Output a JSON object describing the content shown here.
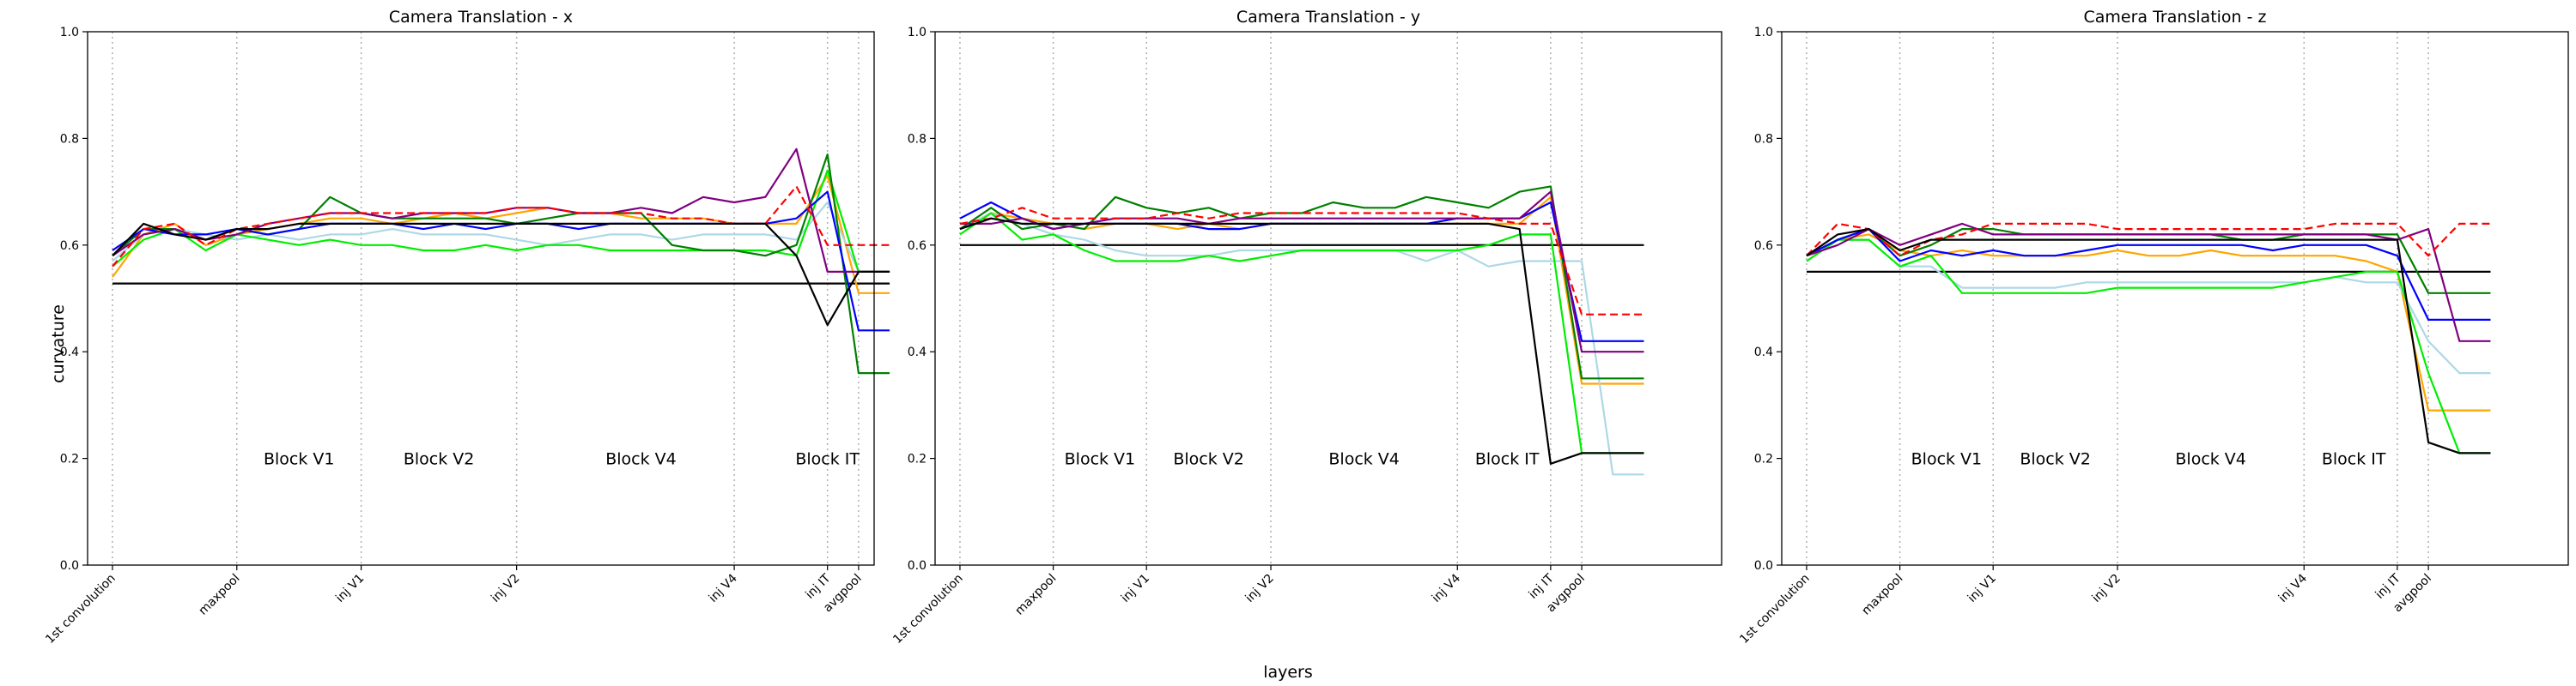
{
  "figure": {
    "xlabel": "layers",
    "ylabel": "curvature"
  },
  "chart_data": [
    {
      "type": "line",
      "title": "Camera Translation - x",
      "ylim": [
        0.0,
        1.0
      ],
      "yticks": [
        "0.0",
        "0.2",
        "0.4",
        "0.6",
        "0.8",
        "1.0"
      ],
      "xlim": [
        -0.8,
        24.5
      ],
      "vlines": [
        0,
        4,
        8,
        13,
        20,
        23,
        24
      ],
      "xticks": [
        "1st convolution",
        "maxpool",
        "inj V1",
        "inj V2",
        "inj V4",
        "inj IT",
        "avgpool"
      ],
      "blocks": [
        {
          "label": "Block V1",
          "x": 6
        },
        {
          "label": "Block V2",
          "x": 10.5
        },
        {
          "label": "Block V4",
          "x": 17
        },
        {
          "label": "Block IT",
          "x": 23
        }
      ],
      "x": [
        0,
        1,
        2,
        3,
        4,
        5,
        6,
        7,
        8,
        9,
        10,
        11,
        12,
        13,
        14,
        15,
        16,
        17,
        18,
        19,
        20,
        21,
        22,
        23,
        24,
        25
      ],
      "series": [
        {
          "color": "#000000",
          "style": "solid",
          "values": [
            0.528,
            0.528,
            0.528,
            0.528,
            0.528,
            0.528,
            0.528,
            0.528,
            0.528,
            0.528,
            0.528,
            0.528,
            0.528,
            0.528,
            0.528,
            0.528,
            0.528,
            0.528,
            0.528,
            0.528,
            0.528,
            0.528,
            0.528,
            0.528,
            0.528,
            0.528
          ]
        },
        {
          "color": "#FFA500",
          "style": "solid",
          "values": [
            0.54,
            0.62,
            0.64,
            0.6,
            0.62,
            0.63,
            0.64,
            0.65,
            0.65,
            0.64,
            0.65,
            0.66,
            0.65,
            0.66,
            0.67,
            0.66,
            0.66,
            0.65,
            0.65,
            0.65,
            0.64,
            0.64,
            0.64,
            0.73,
            0.51,
            0.51
          ]
        },
        {
          "color": "#ADD8E6",
          "style": "solid",
          "values": [
            0.57,
            0.62,
            0.63,
            0.62,
            0.61,
            0.62,
            0.61,
            0.62,
            0.62,
            0.63,
            0.62,
            0.62,
            0.62,
            0.61,
            0.6,
            0.61,
            0.62,
            0.62,
            0.61,
            0.62,
            0.62,
            0.62,
            0.61,
            0.68,
            0.55,
            0.55
          ]
        },
        {
          "color": "#00EE00",
          "style": "solid",
          "values": [
            0.56,
            0.61,
            0.63,
            0.59,
            0.62,
            0.61,
            0.6,
            0.61,
            0.6,
            0.6,
            0.59,
            0.59,
            0.6,
            0.59,
            0.6,
            0.6,
            0.59,
            0.59,
            0.59,
            0.59,
            0.59,
            0.59,
            0.58,
            0.74,
            0.55,
            0.55
          ]
        },
        {
          "color": "#008000",
          "style": "solid",
          "values": [
            0.58,
            0.63,
            0.63,
            0.61,
            0.63,
            0.62,
            0.63,
            0.69,
            0.66,
            0.65,
            0.65,
            0.65,
            0.65,
            0.64,
            0.65,
            0.66,
            0.66,
            0.66,
            0.6,
            0.59,
            0.59,
            0.58,
            0.6,
            0.77,
            0.36,
            0.36
          ]
        },
        {
          "color": "#0000FF",
          "style": "solid",
          "values": [
            0.59,
            0.63,
            0.62,
            0.62,
            0.63,
            0.62,
            0.63,
            0.64,
            0.64,
            0.64,
            0.63,
            0.64,
            0.63,
            0.64,
            0.64,
            0.63,
            0.64,
            0.64,
            0.64,
            0.64,
            0.64,
            0.64,
            0.65,
            0.7,
            0.44,
            0.44
          ]
        },
        {
          "color": "#800080",
          "style": "solid",
          "values": [
            0.58,
            0.62,
            0.63,
            0.61,
            0.62,
            0.64,
            0.65,
            0.66,
            0.66,
            0.65,
            0.66,
            0.66,
            0.66,
            0.67,
            0.67,
            0.66,
            0.66,
            0.67,
            0.66,
            0.69,
            0.68,
            0.69,
            0.78,
            0.55,
            0.55,
            0.55
          ]
        },
        {
          "color": "#FF0000",
          "style": "dashed",
          "values": [
            0.56,
            0.63,
            0.64,
            0.6,
            0.63,
            0.64,
            0.65,
            0.66,
            0.66,
            0.66,
            0.66,
            0.66,
            0.66,
            0.67,
            0.67,
            0.66,
            0.66,
            0.66,
            0.65,
            0.65,
            0.64,
            0.64,
            0.71,
            0.6,
            0.6,
            0.6
          ]
        },
        {
          "color": "#000000",
          "style": "solid",
          "values": [
            0.58,
            0.64,
            0.62,
            0.61,
            0.63,
            0.63,
            0.64,
            0.64,
            0.64,
            0.64,
            0.64,
            0.64,
            0.64,
            0.64,
            0.64,
            0.64,
            0.64,
            0.64,
            0.64,
            0.64,
            0.64,
            0.64,
            0.58,
            0.45,
            0.55,
            0.55
          ]
        }
      ]
    },
    {
      "type": "line",
      "title": "Camera Translation - y",
      "ylim": [
        0.0,
        1.0
      ],
      "yticks": [
        "0.0",
        "0.2",
        "0.4",
        "0.6",
        "0.8",
        "1.0"
      ],
      "xlim": [
        -0.8,
        24.5
      ],
      "vlines": [
        0,
        3,
        6,
        10,
        16,
        19,
        20
      ],
      "xticks": [
        "1st convolution",
        "maxpool",
        "inj V1",
        "inj V2",
        "inj V4",
        "inj IT",
        "avgpool"
      ],
      "blocks": [
        {
          "label": "Block V1",
          "x": 4.5
        },
        {
          "label": "Block V2",
          "x": 8
        },
        {
          "label": "Block V4",
          "x": 13
        },
        {
          "label": "Block IT",
          "x": 17.6
        }
      ],
      "x": [
        0,
        1,
        2,
        3,
        4,
        5,
        6,
        7,
        8,
        9,
        10,
        11,
        12,
        13,
        14,
        15,
        16,
        17,
        18,
        19,
        20,
        21,
        22
      ],
      "series": [
        {
          "color": "#000000",
          "style": "solid",
          "values": [
            0.6,
            0.6,
            0.6,
            0.6,
            0.6,
            0.6,
            0.6,
            0.6,
            0.6,
            0.6,
            0.6,
            0.6,
            0.6,
            0.6,
            0.6,
            0.6,
            0.6,
            0.6,
            0.6,
            0.6,
            0.6,
            0.6,
            0.6
          ]
        },
        {
          "color": "#FFA500",
          "style": "solid",
          "values": [
            0.63,
            0.66,
            0.65,
            0.64,
            0.63,
            0.64,
            0.64,
            0.63,
            0.64,
            0.63,
            0.64,
            0.64,
            0.64,
            0.64,
            0.64,
            0.64,
            0.64,
            0.64,
            0.64,
            0.69,
            0.34,
            0.34,
            0.34
          ]
        },
        {
          "color": "#ADD8E6",
          "style": "solid",
          "values": [
            0.63,
            0.66,
            0.64,
            0.62,
            0.61,
            0.59,
            0.58,
            0.58,
            0.58,
            0.59,
            0.59,
            0.59,
            0.59,
            0.59,
            0.59,
            0.57,
            0.59,
            0.56,
            0.57,
            0.57,
            0.57,
            0.17,
            0.17
          ]
        },
        {
          "color": "#00EE00",
          "style": "solid",
          "values": [
            0.62,
            0.66,
            0.61,
            0.62,
            0.59,
            0.57,
            0.57,
            0.57,
            0.58,
            0.57,
            0.58,
            0.59,
            0.59,
            0.59,
            0.59,
            0.59,
            0.59,
            0.6,
            0.62,
            0.62,
            0.21,
            0.21,
            0.21
          ]
        },
        {
          "color": "#008000",
          "style": "solid",
          "values": [
            0.63,
            0.67,
            0.63,
            0.64,
            0.63,
            0.69,
            0.67,
            0.66,
            0.67,
            0.65,
            0.66,
            0.66,
            0.68,
            0.67,
            0.67,
            0.69,
            0.68,
            0.67,
            0.7,
            0.71,
            0.35,
            0.35,
            0.35
          ]
        },
        {
          "color": "#0000FF",
          "style": "solid",
          "values": [
            0.65,
            0.68,
            0.65,
            0.63,
            0.64,
            0.64,
            0.64,
            0.64,
            0.63,
            0.63,
            0.64,
            0.64,
            0.64,
            0.64,
            0.64,
            0.64,
            0.65,
            0.65,
            0.65,
            0.68,
            0.42,
            0.42,
            0.42
          ]
        },
        {
          "color": "#800080",
          "style": "solid",
          "values": [
            0.64,
            0.64,
            0.65,
            0.63,
            0.64,
            0.65,
            0.65,
            0.65,
            0.64,
            0.65,
            0.65,
            0.65,
            0.65,
            0.65,
            0.65,
            0.65,
            0.65,
            0.65,
            0.65,
            0.7,
            0.4,
            0.4,
            0.4
          ]
        },
        {
          "color": "#FF0000",
          "style": "dashed",
          "values": [
            0.64,
            0.65,
            0.67,
            0.65,
            0.65,
            0.65,
            0.65,
            0.66,
            0.65,
            0.66,
            0.66,
            0.66,
            0.66,
            0.66,
            0.66,
            0.66,
            0.66,
            0.65,
            0.64,
            0.64,
            0.47,
            0.47,
            0.47
          ]
        },
        {
          "color": "#000000",
          "style": "solid",
          "values": [
            0.63,
            0.65,
            0.64,
            0.64,
            0.64,
            0.64,
            0.64,
            0.64,
            0.64,
            0.64,
            0.64,
            0.64,
            0.64,
            0.64,
            0.64,
            0.64,
            0.64,
            0.64,
            0.63,
            0.19,
            0.21,
            0.21,
            0.21
          ]
        }
      ]
    },
    {
      "type": "line",
      "title": "Camera Translation - z",
      "ylim": [
        0.0,
        1.0
      ],
      "yticks": [
        "0.0",
        "0.2",
        "0.4",
        "0.6",
        "0.8",
        "1.0"
      ],
      "xlim": [
        -0.8,
        24.5
      ],
      "vlines": [
        0,
        3,
        6,
        10,
        16,
        19,
        20
      ],
      "xticks": [
        "1st convolution",
        "maxpool",
        "inj V1",
        "inj V2",
        "inj V4",
        "inj IT",
        "avgpool"
      ],
      "blocks": [
        {
          "label": "Block V1",
          "x": 4.5
        },
        {
          "label": "Block V2",
          "x": 8
        },
        {
          "label": "Block V4",
          "x": 13
        },
        {
          "label": "Block IT",
          "x": 17.6
        }
      ],
      "x": [
        0,
        1,
        2,
        3,
        4,
        5,
        6,
        7,
        8,
        9,
        10,
        11,
        12,
        13,
        14,
        15,
        16,
        17,
        18,
        19,
        20,
        21,
        22
      ],
      "series": [
        {
          "color": "#000000",
          "style": "solid",
          "values": [
            0.55,
            0.55,
            0.55,
            0.55,
            0.55,
            0.55,
            0.55,
            0.55,
            0.55,
            0.55,
            0.55,
            0.55,
            0.55,
            0.55,
            0.55,
            0.55,
            0.55,
            0.55,
            0.55,
            0.55,
            0.55,
            0.55,
            0.55
          ]
        },
        {
          "color": "#FFA500",
          "style": "solid",
          "values": [
            0.57,
            0.61,
            0.62,
            0.59,
            0.58,
            0.59,
            0.58,
            0.58,
            0.58,
            0.58,
            0.59,
            0.58,
            0.58,
            0.59,
            0.58,
            0.58,
            0.58,
            0.58,
            0.57,
            0.55,
            0.29,
            0.29,
            0.29
          ]
        },
        {
          "color": "#ADD8E6",
          "style": "solid",
          "values": [
            0.57,
            0.61,
            0.61,
            0.56,
            0.56,
            0.52,
            0.52,
            0.52,
            0.52,
            0.53,
            0.53,
            0.53,
            0.53,
            0.53,
            0.53,
            0.53,
            0.53,
            0.54,
            0.53,
            0.53,
            0.42,
            0.36,
            0.36
          ]
        },
        {
          "color": "#00EE00",
          "style": "solid",
          "values": [
            0.57,
            0.61,
            0.61,
            0.56,
            0.58,
            0.51,
            0.51,
            0.51,
            0.51,
            0.51,
            0.52,
            0.52,
            0.52,
            0.52,
            0.52,
            0.52,
            0.53,
            0.54,
            0.55,
            0.55,
            0.36,
            0.21,
            0.21
          ]
        },
        {
          "color": "#008000",
          "style": "solid",
          "values": [
            0.58,
            0.61,
            0.63,
            0.58,
            0.6,
            0.63,
            0.63,
            0.62,
            0.62,
            0.62,
            0.62,
            0.62,
            0.62,
            0.62,
            0.61,
            0.61,
            0.62,
            0.62,
            0.62,
            0.62,
            0.51,
            0.51,
            0.51
          ]
        },
        {
          "color": "#0000FF",
          "style": "solid",
          "values": [
            0.58,
            0.61,
            0.63,
            0.57,
            0.59,
            0.58,
            0.59,
            0.58,
            0.58,
            0.59,
            0.6,
            0.6,
            0.6,
            0.6,
            0.6,
            0.59,
            0.6,
            0.6,
            0.6,
            0.58,
            0.46,
            0.46,
            0.46
          ]
        },
        {
          "color": "#800080",
          "style": "solid",
          "values": [
            0.58,
            0.6,
            0.63,
            0.6,
            0.62,
            0.64,
            0.62,
            0.62,
            0.62,
            0.62,
            0.62,
            0.62,
            0.62,
            0.62,
            0.62,
            0.62,
            0.62,
            0.62,
            0.62,
            0.61,
            0.63,
            0.42,
            0.42
          ]
        },
        {
          "color": "#FF0000",
          "style": "dashed",
          "values": [
            0.58,
            0.64,
            0.63,
            0.58,
            0.61,
            0.62,
            0.64,
            0.64,
            0.64,
            0.64,
            0.63,
            0.63,
            0.63,
            0.63,
            0.63,
            0.63,
            0.63,
            0.64,
            0.64,
            0.64,
            0.58,
            0.64,
            0.64
          ]
        },
        {
          "color": "#000000",
          "style": "solid",
          "values": [
            0.58,
            0.62,
            0.63,
            0.59,
            0.61,
            0.61,
            0.61,
            0.61,
            0.61,
            0.61,
            0.61,
            0.61,
            0.61,
            0.61,
            0.61,
            0.61,
            0.61,
            0.61,
            0.61,
            0.61,
            0.23,
            0.21,
            0.21
          ]
        }
      ]
    }
  ]
}
